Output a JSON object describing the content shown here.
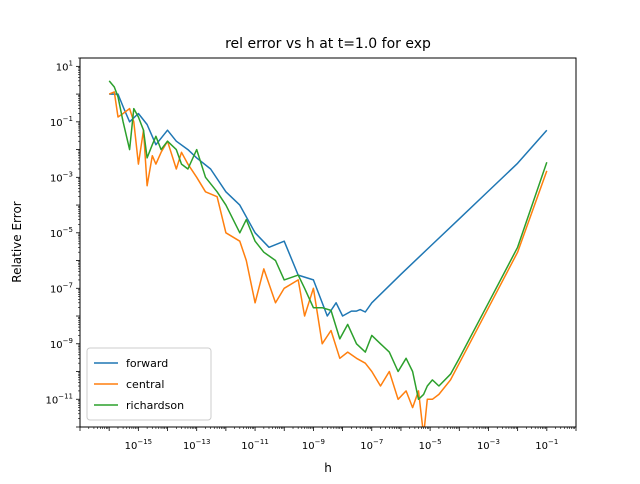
{
  "chart_data": {
    "type": "line",
    "title": "rel error vs h at t=1.0 for exp",
    "xlabel": "h",
    "ylabel": "Relative Error",
    "xscale": "log",
    "yscale": "log",
    "xlim": [
      1e-17,
      1
    ],
    "ylim": [
      1e-12,
      20
    ],
    "grid": false,
    "legend_position": "lower-left",
    "xticks": [
      {
        "value": 1e-15,
        "base": "10",
        "exp": "−15"
      },
      {
        "value": 1e-13,
        "base": "10",
        "exp": "−13"
      },
      {
        "value": 1e-11,
        "base": "10",
        "exp": "−11"
      },
      {
        "value": 1e-09,
        "base": "10",
        "exp": "−9"
      },
      {
        "value": 1e-07,
        "base": "10",
        "exp": "−7"
      },
      {
        "value": 1e-05,
        "base": "10",
        "exp": "−5"
      },
      {
        "value": 0.001,
        "base": "10",
        "exp": "−3"
      },
      {
        "value": 0.1,
        "base": "10",
        "exp": "−1"
      }
    ],
    "yticks": [
      {
        "value": 10,
        "base": "10",
        "exp": "1"
      },
      {
        "value": 0.1,
        "base": "10",
        "exp": "−1"
      },
      {
        "value": 0.001,
        "base": "10",
        "exp": "−3"
      },
      {
        "value": 1e-05,
        "base": "10",
        "exp": "−5"
      },
      {
        "value": 1e-07,
        "base": "10",
        "exp": "−7"
      },
      {
        "value": 1e-09,
        "base": "10",
        "exp": "−9"
      },
      {
        "value": 1e-11,
        "base": "10",
        "exp": "−11"
      }
    ],
    "series": [
      {
        "name": "forward",
        "color": "#1f77b4",
        "x": [
          1e-16,
          2e-16,
          3.2e-16,
          5e-16,
          1e-15,
          2e-15,
          4e-15,
          1e-14,
          2e-14,
          5e-14,
          1e-13,
          3e-13,
          1e-12,
          3e-12,
          1e-11,
          3e-11,
          1e-10,
          3e-10,
          1e-09,
          3e-09,
          6e-09,
          1e-08,
          2e-08,
          3e-08,
          4e-08,
          6e-08,
          1e-07,
          1e-06,
          1e-05,
          0.0001,
          0.001,
          0.01,
          0.1
        ],
        "y": [
          1.0,
          1.0,
          0.3,
          0.1,
          0.2,
          0.08,
          0.015,
          0.05,
          0.02,
          0.01,
          0.005,
          0.002,
          0.0003,
          0.0001,
          1e-05,
          3e-06,
          5e-06,
          3e-07,
          2e-07,
          1e-08,
          3e-08,
          1e-08,
          1.5e-08,
          1.5e-08,
          1.7e-08,
          1.4e-08,
          3e-08,
          3.2e-07,
          3.2e-06,
          3.2e-05,
          0.00032,
          0.0032,
          0.05
        ]
      },
      {
        "name": "central",
        "color": "#ff7f0e",
        "x": [
          1e-16,
          1.5e-16,
          2e-16,
          3e-16,
          5e-16,
          7e-16,
          1e-15,
          1.5e-15,
          2e-15,
          3e-15,
          4e-15,
          6e-15,
          1e-14,
          2e-14,
          3e-14,
          5e-14,
          1e-13,
          2e-13,
          5e-13,
          1e-12,
          3e-12,
          5e-12,
          1e-11,
          2e-11,
          5e-11,
          1e-10,
          3e-10,
          5e-10,
          1e-09,
          2e-09,
          4e-09,
          8e-09,
          1.5e-08,
          3e-08,
          6e-08,
          1e-07,
          2e-07,
          4e-07,
          8e-07,
          1.5e-06,
          2.5e-06,
          4e-06,
          6e-06,
          8e-06,
          1.2e-05,
          2e-05,
          5e-05,
          0.0001,
          0.001,
          0.01,
          0.1
        ],
        "y": [
          1.0,
          1.2,
          0.15,
          0.2,
          0.3,
          0.1,
          0.003,
          0.05,
          0.0005,
          0.006,
          0.003,
          0.008,
          0.02,
          0.002,
          0.008,
          0.003,
          0.001,
          0.0003,
          0.0002,
          1e-05,
          5e-06,
          1e-06,
          3e-08,
          5e-07,
          3e-08,
          1e-07,
          2e-07,
          1e-08,
          1e-07,
          1e-09,
          3e-09,
          3e-10,
          5e-10,
          3e-10,
          2e-10,
          1e-10,
          3e-11,
          1e-10,
          1e-11,
          2e-11,
          5e-12,
          2e-11,
          5e-13,
          1e-11,
          1e-11,
          1.5e-11,
          5e-11,
          2e-10,
          2e-08,
          2e-06,
          0.0017
        ]
      },
      {
        "name": "richardson",
        "color": "#2ca02c",
        "x": [
          1e-16,
          1.5e-16,
          2e-16,
          3e-16,
          5e-16,
          7e-16,
          1e-15,
          1.5e-15,
          2e-15,
          3e-15,
          4e-15,
          6e-15,
          1e-14,
          2e-14,
          3e-14,
          5e-14,
          1e-13,
          2e-13,
          5e-13,
          1e-12,
          3e-12,
          5e-12,
          1e-11,
          2e-11,
          5e-11,
          1e-10,
          3e-10,
          5e-10,
          1e-09,
          2e-09,
          4e-09,
          8e-09,
          1.5e-08,
          3e-08,
          6e-08,
          1e-07,
          2e-07,
          4e-07,
          8e-07,
          1.5e-06,
          2.5e-06,
          4e-06,
          6e-06,
          8e-06,
          1.2e-05,
          2e-05,
          5e-05,
          0.0001,
          0.001,
          0.01,
          0.1
        ],
        "y": [
          3.0,
          1.8,
          0.8,
          0.1,
          0.01,
          0.3,
          0.15,
          0.05,
          0.005,
          0.015,
          0.03,
          0.01,
          0.02,
          0.01,
          0.003,
          0.002,
          0.01,
          0.001,
          0.0003,
          0.0001,
          1e-05,
          3e-05,
          5e-06,
          2e-06,
          1e-06,
          2e-07,
          3e-07,
          1e-07,
          2e-08,
          2e-08,
          1.6e-08,
          1.5e-09,
          5e-09,
          1e-09,
          5e-10,
          2e-09,
          1e-09,
          5e-10,
          1e-10,
          3e-10,
          1e-10,
          1e-11,
          1.5e-11,
          3e-11,
          5e-11,
          3e-11,
          8e-11,
          3e-10,
          3e-08,
          3e-06,
          0.0035
        ]
      }
    ]
  }
}
